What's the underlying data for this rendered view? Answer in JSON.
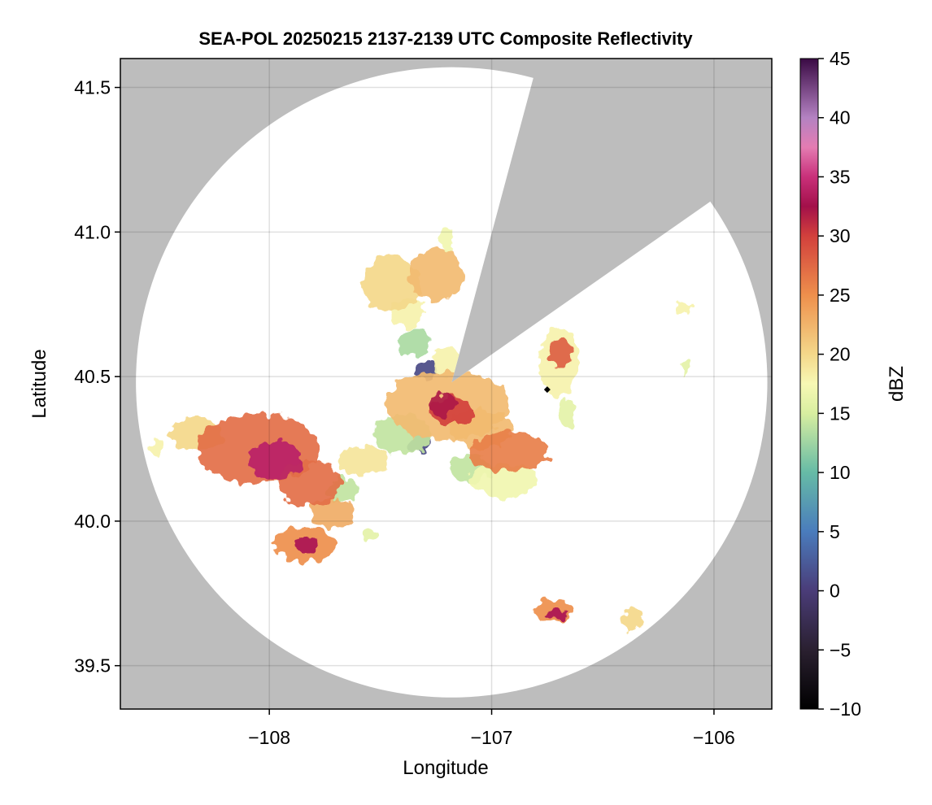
{
  "chart_data": {
    "type": "heatmap",
    "title": "SEA-POL 20250215 2137-2139 UTC Composite Reflectivity",
    "xlabel": "Longitude",
    "ylabel": "Latitude",
    "xlim": [
      -108.67,
      -105.74
    ],
    "ylim": [
      39.35,
      41.6
    ],
    "xticks": [
      -108,
      -107,
      -106
    ],
    "xtick_labels": [
      "−108",
      "−107",
      "−106"
    ],
    "yticks": [
      39.5,
      40.0,
      40.5,
      41.0,
      41.5
    ],
    "ytick_labels": [
      "39.5",
      "40.0",
      "40.5",
      "41.0",
      "41.5"
    ],
    "grid": true,
    "background_color": "#bdbdbd",
    "radar": {
      "center_lon": -107.18,
      "center_lat": 40.48,
      "range_deg_lon": 1.42,
      "range_deg_lat": 1.09,
      "blocked_sector": {
        "from_bearing_deg": 15,
        "to_bearing_deg": 55
      },
      "site_marker": {
        "lon": -106.75,
        "lat": 40.455
      }
    },
    "colorbar": {
      "label": "dBZ",
      "min": -10,
      "max": 45,
      "ticks": [
        -10,
        -5,
        0,
        5,
        10,
        15,
        20,
        25,
        30,
        35,
        40,
        45
      ],
      "tick_labels": [
        "−10",
        "−5",
        "0",
        "5",
        "10",
        "15",
        "20",
        "25",
        "30",
        "35",
        "40",
        "45"
      ],
      "colormap": [
        [
          -10,
          "#000000"
        ],
        [
          -5,
          "#2a2030"
        ],
        [
          0,
          "#4a3c78"
        ],
        [
          5,
          "#4a7cbc"
        ],
        [
          10,
          "#66bba6"
        ],
        [
          15,
          "#d8eea0"
        ],
        [
          17.5,
          "#f7f8b4"
        ],
        [
          20,
          "#f4d88a"
        ],
        [
          25,
          "#ee8f4c"
        ],
        [
          30,
          "#d2403c"
        ],
        [
          32.5,
          "#a3104a"
        ],
        [
          35,
          "#c9307a"
        ],
        [
          37.5,
          "#e47cb2"
        ],
        [
          40,
          "#b482c2"
        ],
        [
          45,
          "#3a0a44"
        ]
      ]
    },
    "echo_cells": [
      {
        "lon": -108.05,
        "lat": 40.25,
        "rlon": 0.28,
        "rlat": 0.12,
        "dbz": 27
      },
      {
        "lon": -107.97,
        "lat": 40.21,
        "rlon": 0.12,
        "rlat": 0.07,
        "dbz": 34
      },
      {
        "lon": -107.82,
        "lat": 40.13,
        "rlon": 0.14,
        "rlat": 0.08,
        "dbz": 27
      },
      {
        "lon": -108.33,
        "lat": 40.3,
        "rlon": 0.12,
        "rlat": 0.06,
        "dbz": 20
      },
      {
        "lon": -107.72,
        "lat": 40.03,
        "rlon": 0.1,
        "rlat": 0.05,
        "dbz": 23
      },
      {
        "lon": -107.84,
        "lat": 39.92,
        "rlon": 0.14,
        "rlat": 0.06,
        "dbz": 25
      },
      {
        "lon": -107.83,
        "lat": 39.92,
        "rlon": 0.05,
        "rlat": 0.03,
        "dbz": 33
      },
      {
        "lon": -107.58,
        "lat": 40.21,
        "rlon": 0.12,
        "rlat": 0.05,
        "dbz": 19
      },
      {
        "lon": -108.5,
        "lat": 40.26,
        "rlon": 0.03,
        "rlat": 0.03,
        "dbz": 18
      },
      {
        "lon": -107.67,
        "lat": 40.11,
        "rlon": 0.07,
        "rlat": 0.04,
        "dbz": 14
      },
      {
        "lon": -107.45,
        "lat": 40.82,
        "rlon": 0.13,
        "rlat": 0.1,
        "dbz": 20
      },
      {
        "lon": -107.25,
        "lat": 40.85,
        "rlon": 0.12,
        "rlat": 0.09,
        "dbz": 22
      },
      {
        "lon": -107.38,
        "lat": 40.72,
        "rlon": 0.08,
        "rlat": 0.05,
        "dbz": 18
      },
      {
        "lon": -107.35,
        "lat": 40.62,
        "rlon": 0.07,
        "rlat": 0.05,
        "dbz": 13
      },
      {
        "lon": -107.3,
        "lat": 40.52,
        "rlon": 0.05,
        "rlat": 0.03,
        "dbz": 1
      },
      {
        "lon": -107.2,
        "lat": 40.55,
        "rlon": 0.07,
        "rlat": 0.05,
        "dbz": 18
      },
      {
        "lon": -107.2,
        "lat": 40.4,
        "rlon": 0.28,
        "rlat": 0.12,
        "dbz": 22
      },
      {
        "lon": -107.18,
        "lat": 40.38,
        "rlon": 0.1,
        "rlat": 0.05,
        "dbz": 30
      },
      {
        "lon": -107.4,
        "lat": 40.3,
        "rlon": 0.13,
        "rlat": 0.07,
        "dbz": 14
      },
      {
        "lon": -107.33,
        "lat": 40.27,
        "rlon": 0.05,
        "rlat": 0.03,
        "dbz": 1
      },
      {
        "lon": -107.05,
        "lat": 40.32,
        "rlon": 0.14,
        "rlat": 0.07,
        "dbz": 22
      },
      {
        "lon": -106.92,
        "lat": 40.24,
        "rlon": 0.18,
        "rlat": 0.07,
        "dbz": 26
      },
      {
        "lon": -106.95,
        "lat": 40.14,
        "rlon": 0.15,
        "rlat": 0.06,
        "dbz": 17
      },
      {
        "lon": -107.1,
        "lat": 40.18,
        "rlon": 0.1,
        "rlat": 0.05,
        "dbz": 14
      },
      {
        "lon": -107.22,
        "lat": 40.4,
        "rlon": 0.06,
        "rlat": 0.04,
        "dbz": 32
      },
      {
        "lon": -106.7,
        "lat": 40.55,
        "rlon": 0.09,
        "rlat": 0.12,
        "dbz": 18
      },
      {
        "lon": -106.69,
        "lat": 40.58,
        "rlon": 0.05,
        "rlat": 0.05,
        "dbz": 28
      },
      {
        "lon": -106.66,
        "lat": 40.37,
        "rlon": 0.04,
        "rlat": 0.05,
        "dbz": 16
      },
      {
        "lon": -106.72,
        "lat": 39.69,
        "rlon": 0.09,
        "rlat": 0.04,
        "dbz": 25
      },
      {
        "lon": -106.7,
        "lat": 39.68,
        "rlon": 0.05,
        "rlat": 0.02,
        "dbz": 33
      },
      {
        "lon": -106.37,
        "lat": 39.66,
        "rlon": 0.05,
        "rlat": 0.04,
        "dbz": 20
      },
      {
        "lon": -106.14,
        "lat": 40.74,
        "rlon": 0.04,
        "rlat": 0.02,
        "dbz": 18
      },
      {
        "lon": -106.13,
        "lat": 40.53,
        "rlon": 0.02,
        "rlat": 0.02,
        "dbz": 16
      },
      {
        "lon": -107.55,
        "lat": 39.95,
        "rlon": 0.04,
        "rlat": 0.02,
        "dbz": 16
      },
      {
        "lon": -107.2,
        "lat": 40.97,
        "rlon": 0.03,
        "rlat": 0.04,
        "dbz": 17
      }
    ]
  }
}
